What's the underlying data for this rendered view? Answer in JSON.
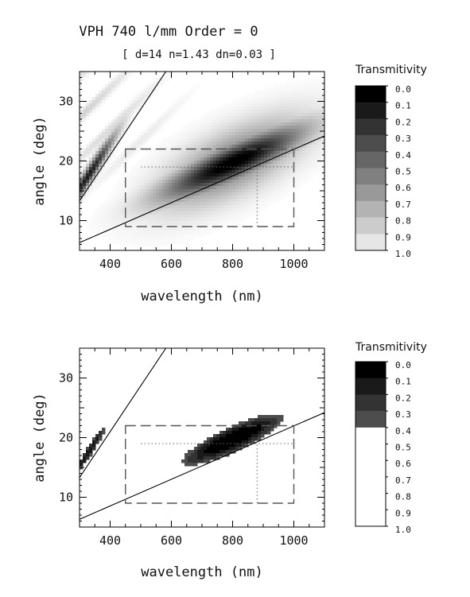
{
  "title": "VPH 740 l/mm Order = 0",
  "subtitle": "[ d=14 n=1.43 dn=0.03 ]",
  "colors": {
    "frame": "#000000",
    "dashed_box": "#555555",
    "dotted_line": "#666666"
  },
  "chart_data": [
    {
      "type": "heatmap",
      "xlabel": "wavelength (nm)",
      "ylabel": "angle (deg)",
      "xlim": [
        300,
        1100
      ],
      "ylim": [
        5,
        35
      ],
      "x_ticks": [
        400,
        600,
        800,
        1000
      ],
      "y_ticks": [
        10,
        20,
        30
      ],
      "legend_title": "Transmitivity",
      "legend_labels": [
        "0.0",
        "0.1",
        "0.2",
        "0.3",
        "0.4",
        "0.5",
        "0.6",
        "0.7",
        "0.8",
        "0.9",
        "1.0"
      ],
      "legend_levels": [
        0.0,
        0.1,
        0.2,
        0.3,
        0.4,
        0.5,
        0.6,
        0.7,
        0.8,
        0.9
      ],
      "colorscale": "full",
      "lines": [
        {
          "x": [
            300,
            582
          ],
          "y": [
            13.3,
            35
          ]
        },
        {
          "x": [
            300,
            1100
          ],
          "y": [
            6.3,
            24.2
          ]
        }
      ],
      "dashed_box": {
        "x": [
          450,
          1000
        ],
        "y": [
          9,
          22
        ]
      },
      "dotted_lines": [
        {
          "x": [
            500,
            1000
          ],
          "y": [
            19,
            19
          ]
        },
        {
          "x": [
            880,
            880
          ],
          "y": [
            9,
            19
          ]
        }
      ]
    },
    {
      "type": "heatmap",
      "xlabel": "wavelength (nm)",
      "ylabel": "angle (deg)",
      "xlim": [
        300,
        1100
      ],
      "ylim": [
        5,
        35
      ],
      "x_ticks": [
        400,
        600,
        800,
        1000
      ],
      "y_ticks": [
        10,
        20,
        30
      ],
      "legend_title": "Transmitivity",
      "legend_labels": [
        "0.0",
        "0.1",
        "0.2",
        "0.3",
        "0.4",
        "0.5",
        "0.6",
        "0.7",
        "0.8",
        "0.9",
        "1.0"
      ],
      "legend_levels": [
        0.0,
        0.1,
        0.2,
        0.3,
        1.0,
        1.0,
        1.0,
        1.0,
        1.0,
        1.0
      ],
      "colorscale": "thresholded",
      "lines": [
        {
          "x": [
            300,
            582
          ],
          "y": [
            13.3,
            35
          ]
        },
        {
          "x": [
            300,
            1100
          ],
          "y": [
            6.3,
            24.2
          ]
        }
      ],
      "dashed_box": {
        "x": [
          450,
          1000
        ],
        "y": [
          9,
          22
        ]
      },
      "dotted_lines": [
        {
          "x": [
            500,
            1000
          ],
          "y": [
            19,
            19
          ]
        },
        {
          "x": [
            880,
            880
          ],
          "y": [
            9,
            19
          ]
        }
      ]
    }
  ]
}
